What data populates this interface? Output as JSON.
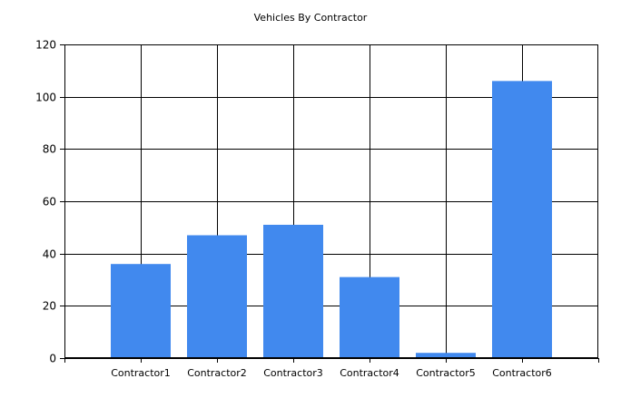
{
  "chart_data": {
    "type": "bar",
    "title": "Vehicles By Contractor",
    "categories": [
      "Contractor1",
      "Contractor2",
      "Contractor3",
      "Contractor4",
      "Contractor5",
      "Contractor6"
    ],
    "values": [
      36,
      47,
      51,
      31,
      2,
      106
    ],
    "xlabel": "",
    "ylabel": "",
    "ylim": [
      0,
      120
    ],
    "yticks": [
      "0",
      "20",
      "40",
      "60",
      "80",
      "100",
      "120"
    ],
    "grid": true,
    "bar_color": "#4189ee",
    "grid_color": "#000000"
  }
}
